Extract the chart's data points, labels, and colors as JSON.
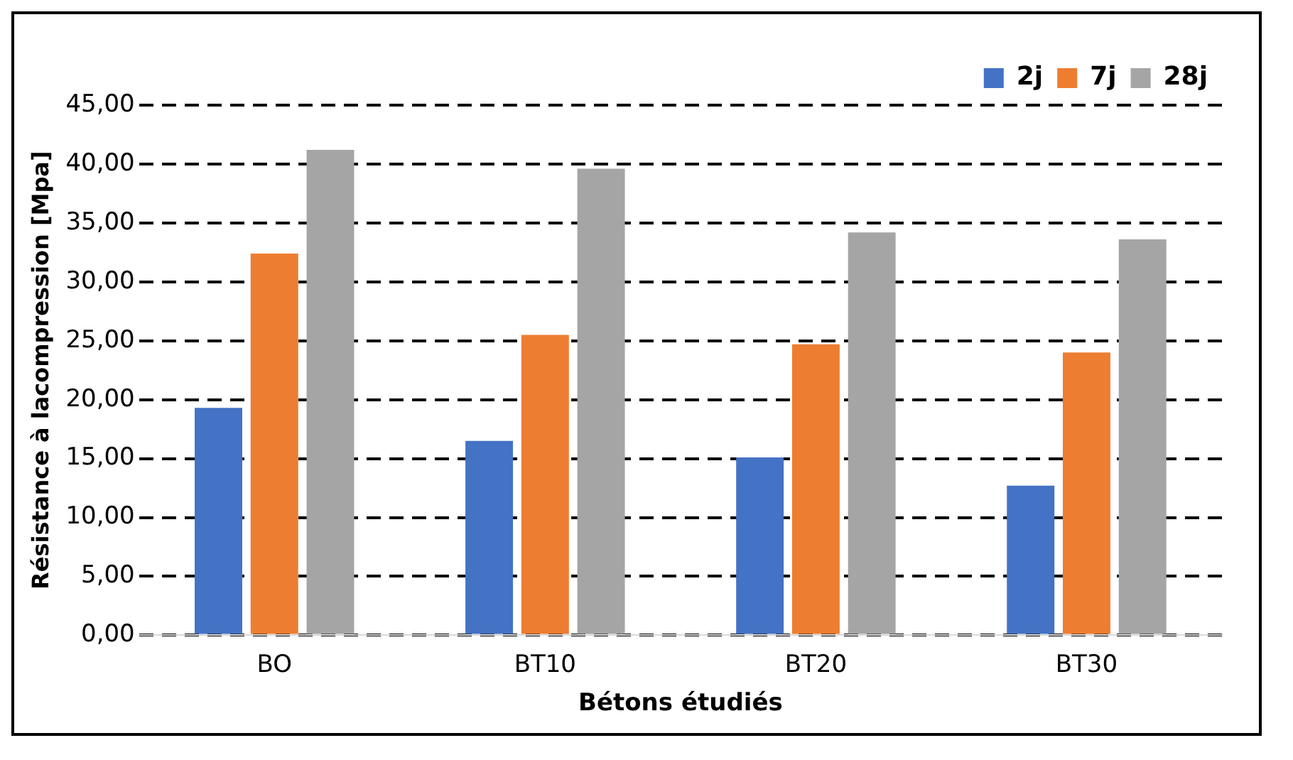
{
  "chart_data": {
    "type": "bar",
    "xlabel": "Bétons étudiés",
    "ylabel": "Résistance à lacompression [Mpa]",
    "categories": [
      "BO",
      "BT10",
      "BT20",
      "BT30"
    ],
    "series": [
      {
        "name": "2j",
        "color": "#4472c4",
        "values": [
          19.3,
          16.5,
          15.1,
          12.7
        ]
      },
      {
        "name": "7j",
        "color": "#ed7d31",
        "values": [
          32.4,
          25.5,
          24.7,
          24.0
        ]
      },
      {
        "name": "28j",
        "color": "#a5a5a5",
        "values": [
          41.2,
          39.6,
          34.2,
          33.6
        ]
      }
    ],
    "ylim": [
      0,
      45
    ],
    "yticks": [
      {
        "value": 0,
        "label": "0,00"
      },
      {
        "value": 5,
        "label": "5,00"
      },
      {
        "value": 10,
        "label": "10,00"
      },
      {
        "value": 15,
        "label": "15,00"
      },
      {
        "value": 20,
        "label": "20,00"
      },
      {
        "value": 25,
        "label": "25,00"
      },
      {
        "value": 30,
        "label": "30,00"
      },
      {
        "value": 35,
        "label": "35,00"
      },
      {
        "value": 40,
        "label": "40,00"
      },
      {
        "value": 45,
        "label": "45,00"
      }
    ],
    "grid": "y",
    "line_style": "dashed",
    "legend": "top right"
  }
}
